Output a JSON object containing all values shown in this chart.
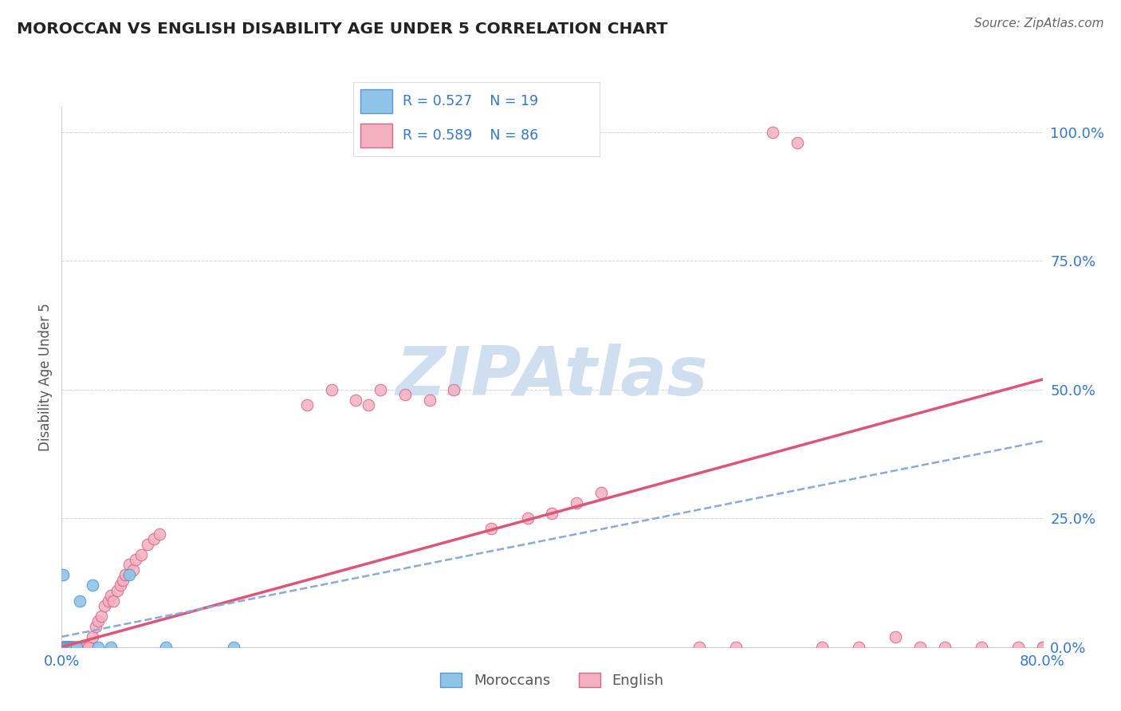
{
  "title": "MOROCCAN VS ENGLISH DISABILITY AGE UNDER 5 CORRELATION CHART",
  "source": "Source: ZipAtlas.com",
  "ylabel": "Disability Age Under 5",
  "xlim": [
    0.0,
    0.8
  ],
  "ylim": [
    0.0,
    1.05
  ],
  "yticks": [
    0.0,
    0.25,
    0.5,
    0.75,
    1.0
  ],
  "ytick_labels": [
    "0.0%",
    "25.0%",
    "50.0%",
    "75.0%",
    "100.0%"
  ],
  "xtick_labels_show": [
    "0.0%",
    "80.0%"
  ],
  "xticks_show": [
    0.0,
    0.8
  ],
  "legend_R_moroccan": "R = 0.527",
  "legend_N_moroccan": "N = 19",
  "legend_R_english": "R = 0.589",
  "legend_N_english": "N = 86",
  "moroccan_color": "#8fc3e8",
  "english_color": "#f4afc0",
  "moroccan_edge": "#5599cc",
  "english_edge": "#d06888",
  "trend_moroccan_color": "#88aadd",
  "trend_english_color": "#dd5577",
  "watermark_color": "#d0dff0",
  "background_color": "#ffffff",
  "grid_color": "#bbbbbb",
  "title_color": "#222222",
  "source_color": "#666666",
  "axis_label_color": "#555555",
  "tick_color": "#3377cc",
  "legend_text_color": "#3377cc",
  "moroccan_x": [
    0.001,
    0.002,
    0.003,
    0.004,
    0.004,
    0.005,
    0.006,
    0.007,
    0.008,
    0.009,
    0.01,
    0.012,
    0.015,
    0.025,
    0.03,
    0.04,
    0.055,
    0.085,
    0.14
  ],
  "moroccan_y": [
    0.14,
    0.0,
    0.0,
    0.0,
    0.0,
    0.0,
    0.0,
    0.0,
    0.0,
    0.0,
    0.0,
    0.0,
    0.09,
    0.12,
    0.0,
    0.0,
    0.14,
    0.0,
    0.0
  ],
  "english_x": [
    0.001,
    0.001,
    0.001,
    0.002,
    0.002,
    0.002,
    0.002,
    0.003,
    0.003,
    0.003,
    0.003,
    0.004,
    0.004,
    0.004,
    0.004,
    0.005,
    0.005,
    0.005,
    0.005,
    0.006,
    0.006,
    0.006,
    0.007,
    0.007,
    0.007,
    0.008,
    0.008,
    0.009,
    0.009,
    0.01,
    0.01,
    0.011,
    0.012,
    0.013,
    0.014,
    0.015,
    0.016,
    0.017,
    0.018,
    0.02,
    0.022,
    0.025,
    0.028,
    0.03,
    0.032,
    0.035,
    0.038,
    0.04,
    0.042,
    0.045,
    0.048,
    0.05,
    0.052,
    0.055,
    0.058,
    0.06,
    0.065,
    0.07,
    0.075,
    0.08,
    0.2,
    0.22,
    0.24,
    0.25,
    0.26,
    0.28,
    0.3,
    0.32,
    0.35,
    0.38,
    0.4,
    0.42,
    0.44,
    0.52,
    0.55,
    0.58,
    0.6,
    0.62,
    0.65,
    0.68,
    0.7,
    0.72,
    0.75,
    0.78,
    0.8,
    0.8
  ],
  "english_y": [
    0.0,
    0.0,
    0.0,
    0.0,
    0.0,
    0.0,
    0.0,
    0.0,
    0.0,
    0.0,
    0.0,
    0.0,
    0.0,
    0.0,
    0.0,
    0.0,
    0.0,
    0.0,
    0.0,
    0.0,
    0.0,
    0.0,
    0.0,
    0.0,
    0.0,
    0.0,
    0.0,
    0.0,
    0.0,
    0.0,
    0.0,
    0.0,
    0.0,
    0.0,
    0.0,
    0.0,
    0.0,
    0.0,
    0.0,
    0.0,
    0.0,
    0.02,
    0.04,
    0.05,
    0.06,
    0.08,
    0.09,
    0.1,
    0.09,
    0.11,
    0.12,
    0.13,
    0.14,
    0.16,
    0.15,
    0.17,
    0.18,
    0.2,
    0.21,
    0.22,
    0.47,
    0.5,
    0.48,
    0.47,
    0.5,
    0.49,
    0.48,
    0.5,
    0.23,
    0.25,
    0.26,
    0.28,
    0.3,
    0.0,
    0.0,
    1.0,
    0.98,
    0.0,
    0.0,
    0.02,
    0.0,
    0.0,
    0.0,
    0.0,
    0.0,
    0.0
  ],
  "trend_eng_x0": 0.0,
  "trend_eng_y0": 0.0,
  "trend_eng_x1": 0.8,
  "trend_eng_y1": 0.52,
  "trend_mor_x0": 0.0,
  "trend_mor_y0": 0.02,
  "trend_mor_x1": 0.8,
  "trend_mor_y1": 0.4
}
